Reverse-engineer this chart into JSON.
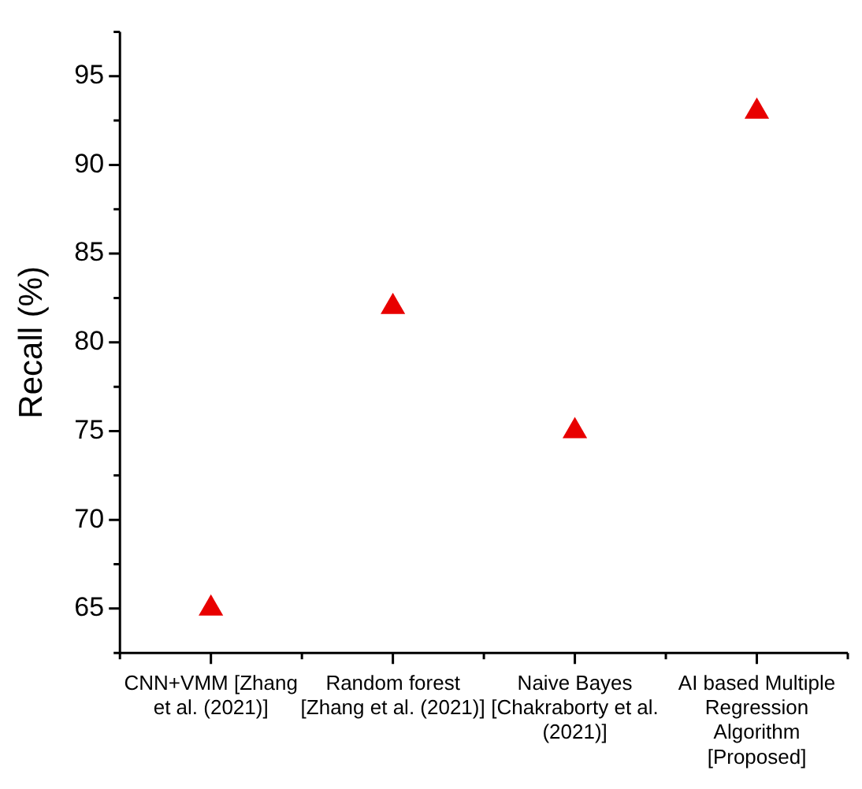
{
  "chart_data": {
    "type": "scatter",
    "ylabel": "Recall (%)",
    "categories": [
      "CNN+VMM [Zhang et al. (2021)]",
      "Random forest [Zhang et al. (2021)]",
      "Naive Bayes [Chakraborty et al. (2021)]",
      "AI based Multiple Regression Algorithm [Proposed]"
    ],
    "values": [
      65,
      82,
      75,
      93
    ],
    "color": "#e80000",
    "marker": "triangle",
    "ylim": [
      62.5,
      97.5
    ],
    "yticks": [
      {
        "value": 62.5,
        "label": null
      },
      65,
      {
        "value": 67.5,
        "label": null
      },
      70,
      {
        "value": 72.5,
        "label": null
      },
      75,
      {
        "value": 77.5,
        "label": null
      },
      80,
      {
        "value": 82.5,
        "label": null
      },
      85,
      {
        "value": 87.5,
        "label": null
      },
      90,
      {
        "value": 92.5,
        "label": null
      },
      95,
      {
        "value": 97.5,
        "label": null
      }
    ],
    "grid": false,
    "legend": false
  }
}
